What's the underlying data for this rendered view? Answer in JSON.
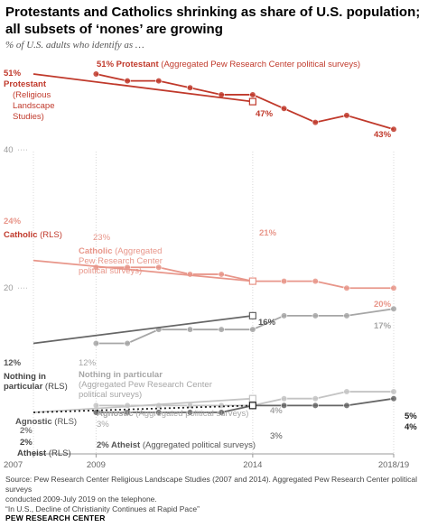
{
  "title": "Protestants and Catholics shrinking as share of U.S. population; all subsets of ‘nones’ are growing",
  "subtitle": "% of U.S. adults who identify as …",
  "source": {
    "line1": "Source: Pew Research Center Religious Landscape Studies (2007 and 2014). Aggregated Pew Research Center political surveys",
    "line2": "conducted 2009-July 2019 on the telephone.",
    "line3": "“In U.S., Decline of Christianity Continues at Rapid Pace”"
  },
  "logo": "PEW RESEARCH CENTER",
  "colors": {
    "protestant": "#c0392b",
    "catholic": "#e8968a",
    "nothing_rls": "#666666",
    "nothing_agg": "#a6a6a6",
    "atheist_agnostic_dark": "#666666",
    "light_grey": "#c4c4c4"
  },
  "chart_data": {
    "type": "line",
    "x_ticks": [
      "2007",
      "2009",
      "2014",
      "2018/19"
    ],
    "y_ticks": [
      {
        "value": 40,
        "label": "40"
      },
      {
        "value": 20,
        "label": "20"
      }
    ],
    "series": [
      {
        "id": "protestant_agg",
        "name": "Protestant (Aggregated Pew Research Center political surveys)",
        "x": [
          2009,
          2010,
          2011,
          2012,
          2013,
          2014,
          2015,
          2016,
          2017,
          2018.5
        ],
        "y": [
          51,
          50,
          50,
          49,
          48,
          48,
          46,
          44,
          45,
          43
        ],
        "style": "solid",
        "color": "#c0392b",
        "markers": "circle"
      },
      {
        "id": "protestant_rls",
        "name": "Protestant (Religious Landscape Studies)",
        "x": [
          2007,
          2014
        ],
        "y": [
          51,
          47
        ],
        "style": "solid",
        "color": "#c0392b",
        "markers": "square"
      },
      {
        "id": "catholic_agg",
        "name": "Catholic (Aggregated Pew Research Center political surveys)",
        "x": [
          2009,
          2010,
          2011,
          2012,
          2013,
          2014,
          2015,
          2016,
          2017,
          2018.5
        ],
        "y": [
          23,
          23,
          23,
          22,
          22,
          21,
          21,
          21,
          20,
          20
        ],
        "style": "solid",
        "color": "#e8968a",
        "markers": "circle"
      },
      {
        "id": "catholic_rls",
        "name": "Catholic (RLS)",
        "x": [
          2007,
          2014
        ],
        "y": [
          24,
          21
        ],
        "style": "solid",
        "color": "#e8968a",
        "markers": "square"
      },
      {
        "id": "nothing_agg",
        "name": "Nothing in particular (Aggregated Pew Research Center political surveys)",
        "x": [
          2009,
          2010,
          2011,
          2012,
          2013,
          2014,
          2015,
          2016,
          2017,
          2018.5
        ],
        "y": [
          12,
          12,
          14,
          14,
          14,
          14,
          16,
          16,
          16,
          17
        ],
        "style": "solid",
        "color": "#a6a6a6",
        "markers": "circle"
      },
      {
        "id": "nothing_rls",
        "name": "Nothing in particular (RLS)",
        "x": [
          2007,
          2014
        ],
        "y": [
          12,
          16
        ],
        "style": "solid",
        "color": "#666666",
        "markers": "square"
      },
      {
        "id": "agnostic_agg",
        "name": "Agnostic (Aggregated political surveys)",
        "x": [
          2009,
          2010,
          2011,
          2012,
          2013,
          2014,
          2015,
          2016,
          2017,
          2018.5
        ],
        "y": [
          3,
          3,
          3,
          3,
          3,
          3,
          4,
          4,
          5,
          5
        ],
        "style": "solid",
        "color": "#c4c4c4",
        "markers": "circle"
      },
      {
        "id": "agnostic_rls",
        "name": "Agnostic (RLS)",
        "x": [
          2007,
          2014
        ],
        "y": [
          2,
          4
        ],
        "style": "solid",
        "color": "#c4c4c4",
        "markers": "square"
      },
      {
        "id": "atheist_agg",
        "name": "Atheist (Aggregated political surveys)",
        "x": [
          2009,
          2010,
          2011,
          2012,
          2013,
          2014,
          2015,
          2016,
          2017,
          2018.5
        ],
        "y": [
          2,
          2,
          2,
          2,
          2,
          3,
          3,
          3,
          3,
          4
        ],
        "style": "solid",
        "color": "#666666",
        "markers": "circle"
      },
      {
        "id": "atheist_rls",
        "name": "Atheist (RLS)",
        "x": [
          2007,
          2014
        ],
        "y": [
          2,
          3
        ],
        "style": "dotted",
        "color": "#222222",
        "markers": "square"
      }
    ],
    "labels": [
      {
        "text": "51%",
        "series": "protestant_rls",
        "color": "#c0392b",
        "bold": true
      },
      {
        "text": "Protestant",
        "series": "protestant_rls",
        "color": "#c0392b",
        "bold": true
      },
      {
        "text": "(Religious",
        "series": "protestant_rls",
        "color": "#c0392b"
      },
      {
        "text": "Landscape",
        "series": "protestant_rls",
        "color": "#c0392b"
      },
      {
        "text": "Studies)",
        "series": "protestant_rls",
        "color": "#c0392b"
      },
      {
        "text": "51% Protestant",
        "series": "protestant_agg",
        "color": "#c0392b",
        "bold": true
      },
      {
        "text": " (Aggregated Pew Research Center political surveys)",
        "series": "protestant_agg",
        "color": "#c0392b"
      },
      {
        "text": "47%",
        "series": "protestant_rls",
        "color": "#c0392b",
        "bold": true
      },
      {
        "text": "43%",
        "series": "protestant_agg",
        "color": "#c0392b",
        "bold": true
      },
      {
        "text": "24%",
        "series": "catholic_rls",
        "color": "#e8968a",
        "bold": true
      },
      {
        "text": "Catholic",
        "series": "catholic_rls",
        "color": "#c0392b",
        "bold": true
      },
      {
        "text": " (RLS)",
        "series": "catholic_rls",
        "color": "#c0392b"
      },
      {
        "text": "23%",
        "series": "catholic_agg",
        "color": "#e8968a"
      },
      {
        "text": "Catholic",
        "series": "catholic_agg",
        "color": "#e8968a",
        "bold": true
      },
      {
        "text": " (Aggregated",
        "series": "catholic_agg",
        "color": "#e8968a"
      },
      {
        "text": "Pew Research Center",
        "series": "catholic_agg",
        "color": "#e8968a"
      },
      {
        "text": "political surveys)",
        "series": "catholic_agg",
        "color": "#e8968a"
      },
      {
        "text": "21%",
        "series": "catholic_rls",
        "color": "#e8968a",
        "bold": true
      },
      {
        "text": "20%",
        "series": "catholic_agg",
        "color": "#e8968a",
        "bold": true
      },
      {
        "text": "16%",
        "series": "nothing_rls",
        "color": "#555555",
        "bold": true
      },
      {
        "text": "17%",
        "series": "nothing_agg",
        "color": "#a6a6a6",
        "bold": true
      },
      {
        "text": "12%",
        "series": "nothing_rls",
        "color": "#555555",
        "bold": true
      },
      {
        "text": "Nothing in",
        "series": "nothing_rls",
        "color": "#444444",
        "bold": true
      },
      {
        "text": "particular",
        "series": "nothing_rls",
        "color": "#444444",
        "bold": true
      },
      {
        "text": " (RLS)",
        "series": "nothing_rls",
        "color": "#444444"
      },
      {
        "text": "12%",
        "series": "nothing_agg",
        "color": "#a6a6a6"
      },
      {
        "text": "Nothing in particular",
        "series": "nothing_agg",
        "color": "#a6a6a6",
        "bold": true
      },
      {
        "text": "(Aggregated Pew Research Center",
        "series": "nothing_agg",
        "color": "#a6a6a6"
      },
      {
        "text": "political surveys)",
        "series": "nothing_agg",
        "color": "#a6a6a6"
      },
      {
        "text": "Agnostic",
        "series": "agnostic_rls",
        "color": "#555555",
        "bold": true
      },
      {
        "text": " (RLS)",
        "series": "agnostic_rls",
        "color": "#555555"
      },
      {
        "text": "Agnostic",
        "series": "agnostic_agg",
        "color": "#a6a6a6",
        "bold": true
      },
      {
        "text": " (Aggregated political surveys)",
        "series": "agnostic_agg",
        "color": "#a6a6a6"
      },
      {
        "text": "3%",
        "series": "agnostic_agg",
        "color": "#a6a6a6"
      },
      {
        "text": "2%",
        "series": "agnostic_rls",
        "color": "#777777",
        "bold": true
      },
      {
        "text": "2%",
        "series": "atheist_rls",
        "color": "#444444",
        "bold": true
      },
      {
        "text": "Atheist",
        "series": "atheist_rls",
        "color": "#444444",
        "bold": true
      },
      {
        "text": " (RLS)",
        "series": "atheist_rls",
        "color": "#444444"
      },
      {
        "text": "2% Atheist",
        "series": "atheist_agg",
        "color": "#555555",
        "bold": true
      },
      {
        "text": " (Aggregated political surveys)",
        "series": "atheist_agg",
        "color": "#555555"
      },
      {
        "text": "4%",
        "series": "agnostic_rls",
        "color": "#a6a6a6",
        "bold": true
      },
      {
        "text": "3%",
        "series": "atheist_rls",
        "color": "#555555"
      },
      {
        "text": "5%",
        "series": "agnostic_agg",
        "color": "#222222",
        "bold": true
      },
      {
        "text": "4%",
        "series": "atheist_agg",
        "color": "#222222",
        "bold": true
      }
    ]
  }
}
